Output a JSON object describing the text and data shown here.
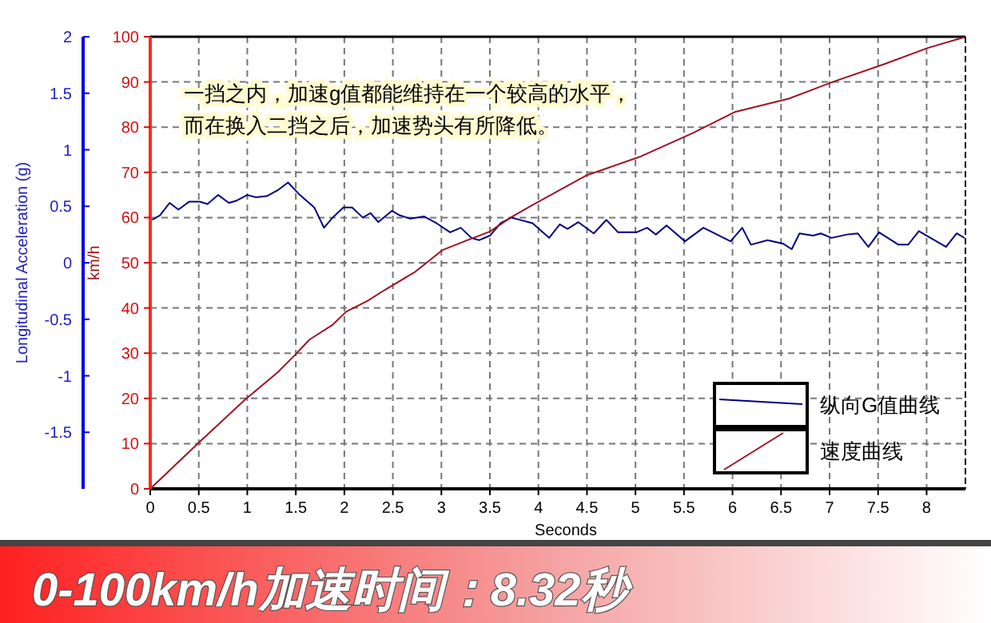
{
  "chart_data": {
    "type": "line",
    "xlabel": "Seconds",
    "ylabel": "km/h",
    "y2label": "Longitudinal Acceleration (g)",
    "xlim": [
      0,
      8.4
    ],
    "xticks": [
      0,
      0.5,
      1,
      1.5,
      2,
      2.5,
      3,
      3.5,
      4,
      4.5,
      5,
      5.5,
      6,
      6.5,
      7,
      7.5,
      8
    ],
    "ylim": [
      0,
      100
    ],
    "yticks": [
      0,
      10,
      20,
      30,
      40,
      50,
      60,
      70,
      80,
      90,
      100
    ],
    "y2lim": [
      -2,
      2
    ],
    "y2ticks": [
      -1.5,
      -1,
      -0.5,
      0,
      0.5,
      1,
      1.5,
      2
    ],
    "grid": true,
    "legend": "bottom right",
    "marker": "none",
    "line_style": "solid",
    "series": [
      {
        "name": "纵向G值曲线",
        "color": "#000080",
        "axis": "y2",
        "x": [
          0.02,
          0.1,
          0.2,
          0.29,
          0.4,
          0.51,
          0.59,
          0.7,
          0.81,
          0.89,
          1.0,
          1.09,
          1.2,
          1.31,
          1.42,
          1.53,
          1.61,
          1.69,
          1.79,
          1.88,
          1.99,
          2.08,
          2.19,
          2.27,
          2.35,
          2.49,
          2.57,
          2.68,
          2.82,
          2.95,
          3.09,
          3.2,
          3.31,
          3.39,
          3.5,
          3.61,
          3.72,
          3.94,
          4.11,
          4.22,
          4.3,
          4.41,
          4.57,
          4.7,
          4.82,
          5.01,
          5.12,
          5.21,
          5.32,
          5.51,
          5.7,
          5.98,
          6.1,
          6.19,
          6.36,
          6.52,
          6.61,
          6.69,
          6.83,
          6.91,
          7.02,
          7.18,
          7.29,
          7.4,
          7.51,
          7.71,
          7.81,
          7.92,
          8.2,
          8.31,
          8.39
        ],
        "values": [
          0.38,
          0.42,
          0.53,
          0.47,
          0.54,
          0.54,
          0.52,
          0.6,
          0.53,
          0.55,
          0.6,
          0.58,
          0.59,
          0.64,
          0.71,
          0.61,
          0.55,
          0.49,
          0.31,
          0.4,
          0.49,
          0.49,
          0.4,
          0.44,
          0.36,
          0.46,
          0.42,
          0.39,
          0.41,
          0.35,
          0.27,
          0.31,
          0.22,
          0.2,
          0.24,
          0.35,
          0.4,
          0.35,
          0.22,
          0.34,
          0.3,
          0.36,
          0.26,
          0.38,
          0.27,
          0.27,
          0.31,
          0.25,
          0.33,
          0.19,
          0.31,
          0.19,
          0.31,
          0.16,
          0.2,
          0.17,
          0.12,
          0.26,
          0.24,
          0.26,
          0.22,
          0.25,
          0.26,
          0.14,
          0.27,
          0.16,
          0.16,
          0.28,
          0.14,
          0.26,
          0.22
        ]
      },
      {
        "name": "速度曲线",
        "color": "#a01020",
        "x": [
          0,
          0.48,
          0.98,
          1.31,
          1.5,
          1.64,
          1.88,
          2.02,
          2.24,
          2.41,
          2.73,
          3.01,
          3.28,
          3.5,
          3.72,
          3.94,
          4.49,
          5.04,
          5.59,
          6.03,
          6.58,
          7.02,
          7.57,
          8.01,
          8.39
        ],
        "values": [
          0,
          9.8,
          19.8,
          25.7,
          29.8,
          33,
          36.3,
          39.2,
          41.6,
          43.9,
          48,
          52.8,
          55.1,
          56.9,
          60.1,
          62.8,
          69.3,
          73.4,
          78.7,
          83.4,
          86.3,
          89.9,
          94,
          97.5,
          99.9
        ]
      }
    ],
    "annotations": [
      "一挡之内，加速g值都能维持在一个较高的水平，",
      "而在换入二挡之后，加速势头有所降低。",
      "0-100km/h加速时间：8.32秒"
    ]
  }
}
